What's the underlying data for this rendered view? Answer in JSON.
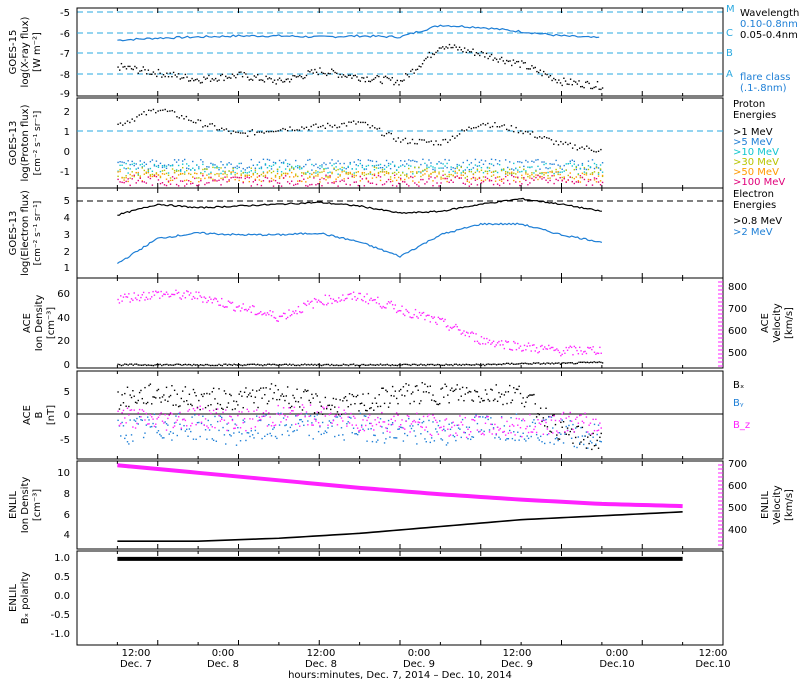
{
  "footer": {
    "time_ticks": [
      "12:00",
      "0:00",
      "12:00",
      "0:00",
      "12:00",
      "0:00",
      "12:00"
    ],
    "date_ticks": [
      "Dec. 7",
      "Dec. 8",
      "Dec. 8",
      "Dec. 9",
      "Dec. 9",
      "Dec.10",
      "Dec.10"
    ],
    "xlabel": "hours:minutes, Dec.  7, 2014 – Dec. 10, 2014"
  },
  "colors": {
    "black": "#000000",
    "blue": "#1e7fd6",
    "cyan_dash": "#2aa9e0",
    "magenta": "#ff22ff",
    "proton_1": "#000000",
    "proton_5": "#1e7fd6",
    "proton_10": "#11c6cf",
    "proton_30": "#b9c400",
    "proton_50": "#ff9a00",
    "proton_100": "#e0007a"
  },
  "panels": {
    "goes15_xray": {
      "ylabel": [
        "GOES-15",
        "log(X-ray flux)",
        "[W m⁻²]"
      ],
      "legend_title": "Wavelength",
      "legend_items": [
        "0.10-0.8nm",
        "0.05-0.4nm"
      ],
      "flare_class_title": "flare class",
      "flare_class_sub": "(.1-.8nm)",
      "flare_class_letters": [
        "M",
        "C",
        "B",
        "A"
      ],
      "yticks": [
        "-5",
        "-6",
        "-7",
        "-8",
        "-9"
      ]
    },
    "goes13_proton": {
      "ylabel": [
        "GOES-13",
        "log(Proton flux)",
        "[cm⁻² s⁻¹ sr⁻¹]"
      ],
      "legend_title": [
        "Proton",
        "Energies"
      ],
      "legend_items": [
        ">1 MeV",
        ">5 MeV",
        ">10 MeV",
        ">30 MeV",
        ">50 MeV",
        ">100 MeV"
      ],
      "yticks": [
        "2",
        "1",
        "0",
        "-1"
      ]
    },
    "goes13_electron": {
      "ylabel": [
        "GOES-13",
        "log(Electron flux)",
        "[cm⁻² s⁻¹ sr⁻¹]"
      ],
      "legend_title": [
        "Electron",
        "Energies"
      ],
      "legend_items": [
        ">0.8 MeV",
        ">2 MeV"
      ],
      "yticks": [
        "5",
        "4",
        "3",
        "2",
        "1"
      ]
    },
    "ace_plasma": {
      "ylabel_left": [
        "ACE",
        "Ion Density",
        "[cm⁻³]"
      ],
      "ylabel_right": [
        "ACE",
        "Velocity",
        "[km/s]"
      ],
      "yticks_left": [
        "60",
        "40",
        "20",
        "0"
      ],
      "yticks_right": [
        "800",
        "700",
        "600",
        "500"
      ]
    },
    "ace_b": {
      "ylabel": [
        "ACE",
        "B",
        "[nT]"
      ],
      "legend_items": [
        "Bₓ",
        "Bᵧ",
        "B_z"
      ],
      "yticks": [
        "5",
        "0",
        "-5"
      ]
    },
    "enlil_plasma": {
      "ylabel_left": [
        "ENLIL",
        "Ion Density",
        "[cm⁻³]"
      ],
      "ylabel_right": [
        "ENLIL",
        "Velocity",
        "[km/s]"
      ],
      "yticks_left": [
        "10",
        "8",
        "6",
        "4"
      ],
      "yticks_right": [
        "700",
        "600",
        "500",
        "400"
      ]
    },
    "enlil_polarity": {
      "ylabel": [
        "ENLIL",
        "Bₓ polarity"
      ],
      "yticks": [
        "1.0",
        "0.5",
        "0.0",
        "-0.5",
        "-1.0"
      ]
    }
  },
  "chart_data": [
    {
      "type": "scatter",
      "title": "",
      "xlabel": "hours:minutes, Dec.  7, 2014 – Dec. 10, 2014",
      "ylabel": "GOES-15 log(X-ray flux) [W m-2]",
      "x_hours_since_dec7": [
        6,
        12,
        18,
        24,
        30,
        36,
        42,
        48,
        54,
        60,
        66,
        72,
        78
      ],
      "ylim": [
        -9,
        -4.9
      ],
      "reference_lines": {
        "M": -5,
        "C": -6,
        "B": -7,
        "A": -8
      },
      "series": [
        {
          "name": "0.10-0.8nm",
          "values": [
            -6.4,
            -6.3,
            -6.25,
            -6.2,
            -6.2,
            -6.25,
            -6.2,
            -6.25,
            -5.7,
            -5.8,
            -6.0,
            -6.2,
            -6.3
          ]
        },
        {
          "name": "0.05-0.4nm",
          "values": [
            -7.6,
            -7.9,
            -8.2,
            -8.0,
            -8.3,
            -7.8,
            -8.1,
            -8.3,
            -6.6,
            -7.0,
            -7.5,
            -8.3,
            -8.5
          ]
        }
      ]
    },
    {
      "type": "scatter",
      "title": "",
      "ylabel": "GOES-13 log(Proton flux) [cm-2 s-1 sr-1]",
      "x_hours_since_dec7": [
        6,
        12,
        18,
        24,
        30,
        36,
        42,
        48,
        54,
        60,
        66,
        72,
        78
      ],
      "ylim": [
        -2,
        2.5
      ],
      "reference_lines": {
        "threshold": 1
      },
      "series": [
        {
          "name": ">1 MeV",
          "values": [
            1.2,
            2.0,
            1.3,
            0.7,
            1.0,
            1.1,
            1.3,
            0.4,
            0.3,
            1.3,
            0.9,
            0.2,
            -0.1
          ]
        },
        {
          "name": ">5 MeV",
          "values": [
            -0.8,
            -0.8,
            -0.8,
            -0.8,
            -0.8,
            -0.8,
            -0.8,
            -0.8,
            -0.8,
            -0.8,
            -0.8,
            -0.8,
            -0.8
          ]
        },
        {
          "name": ">10 MeV",
          "values": [
            -1.0,
            -1.0,
            -1.0,
            -1.0,
            -1.0,
            -1.0,
            -1.0,
            -1.0,
            -1.0,
            -1.0,
            -1.0,
            -1.0,
            -1.0
          ]
        },
        {
          "name": ">30 MeV",
          "values": [
            -1.2,
            -1.2,
            -1.2,
            -1.2,
            -1.2,
            -1.2,
            -1.2,
            -1.2,
            -1.2,
            -1.2,
            -1.2,
            -1.2,
            -1.2
          ]
        },
        {
          "name": ">50 MeV",
          "values": [
            -1.4,
            -1.4,
            -1.4,
            -1.4,
            -1.4,
            -1.4,
            -1.4,
            -1.4,
            -1.4,
            -1.4,
            -1.4,
            -1.4,
            -1.4
          ]
        },
        {
          "name": ">100 MeV",
          "values": [
            -1.6,
            -1.6,
            -1.6,
            -1.6,
            -1.6,
            -1.6,
            -1.6,
            -1.6,
            -1.6,
            -1.6,
            -1.6,
            -1.6,
            -1.6
          ]
        }
      ]
    },
    {
      "type": "line",
      "title": "",
      "ylabel": "GOES-13 log(Electron flux) [cm-2 s-1 sr-1]",
      "x_hours_since_dec7": [
        6,
        12,
        18,
        24,
        30,
        36,
        42,
        48,
        54,
        60,
        66,
        72,
        78
      ],
      "ylim": [
        0.5,
        5.5
      ],
      "reference_lines": {
        "threshold": 5
      },
      "series": [
        {
          "name": ">0.8 MeV",
          "values": [
            4.0,
            4.6,
            4.4,
            4.5,
            4.6,
            4.7,
            4.5,
            4.1,
            4.2,
            4.6,
            4.9,
            4.6,
            4.2
          ]
        },
        {
          "name": ">2 MeV",
          "values": [
            1.3,
            2.7,
            3.0,
            2.9,
            2.9,
            3.0,
            2.5,
            1.7,
            2.9,
            3.5,
            3.5,
            2.9,
            2.5
          ]
        }
      ]
    },
    {
      "type": "scatter",
      "title": "",
      "ylabel": "ACE Ion Density [cm-3] / Velocity [km/s]",
      "x_hours_since_dec7": [
        6,
        12,
        18,
        24,
        30,
        36,
        42,
        48,
        54,
        60,
        66,
        72,
        78
      ],
      "ylim": [
        0,
        70
      ],
      "ylim_right": [
        420,
        830
      ],
      "series": [
        {
          "name": "Ion Density",
          "axis": "left",
          "values": [
            3,
            3,
            3,
            3,
            3,
            3,
            3,
            3,
            3,
            3,
            4,
            4,
            5
          ]
        },
        {
          "name": "Velocity",
          "axis": "right",
          "values": [
            740,
            760,
            750,
            700,
            655,
            730,
            750,
            690,
            630,
            550,
            520,
            500,
            505
          ]
        }
      ]
    },
    {
      "type": "scatter",
      "title": "",
      "ylabel": "ACE B [nT]",
      "x_hours_since_dec7": [
        6,
        12,
        18,
        24,
        30,
        36,
        42,
        48,
        54,
        60,
        66,
        72,
        78
      ],
      "ylim": [
        -8,
        8
      ],
      "series": [
        {
          "name": "Bx",
          "values": [
            3,
            4,
            3,
            3,
            4,
            2,
            2,
            4,
            4,
            4,
            4,
            -3,
            -5
          ]
        },
        {
          "name": "By",
          "values": [
            -3,
            -2,
            -2,
            -3,
            -2,
            -2,
            -2,
            -3,
            -3,
            -2,
            -2,
            -3,
            -4
          ]
        },
        {
          "name": "Bz",
          "values": [
            0,
            -1,
            0,
            -1,
            0,
            0,
            -1,
            -1,
            -2,
            -2,
            -2,
            -1,
            -2
          ]
        }
      ]
    },
    {
      "type": "line",
      "title": "",
      "ylabel": "ENLIL Ion Density [cm-3] / Velocity [km/s]",
      "x_hours_since_dec7": [
        6,
        18,
        30,
        42,
        54,
        66,
        78,
        90
      ],
      "ylim": [
        2,
        11
      ],
      "ylim_right": [
        300,
        710
      ],
      "series": [
        {
          "name": "Ion Density",
          "axis": "left",
          "values": [
            2.8,
            2.8,
            3.1,
            3.6,
            4.3,
            5.0,
            5.4,
            5.8
          ]
        },
        {
          "name": "Velocity",
          "axis": "right",
          "values": [
            690,
            655,
            620,
            585,
            555,
            530,
            510,
            500
          ]
        }
      ]
    },
    {
      "type": "line",
      "title": "",
      "ylabel": "ENLIL Bx polarity",
      "x_hours_since_dec7": [
        6,
        90
      ],
      "ylim": [
        -1.2,
        1.2
      ],
      "series": [
        {
          "name": "Bx polarity",
          "values": [
            1.0,
            1.0
          ]
        }
      ]
    }
  ]
}
